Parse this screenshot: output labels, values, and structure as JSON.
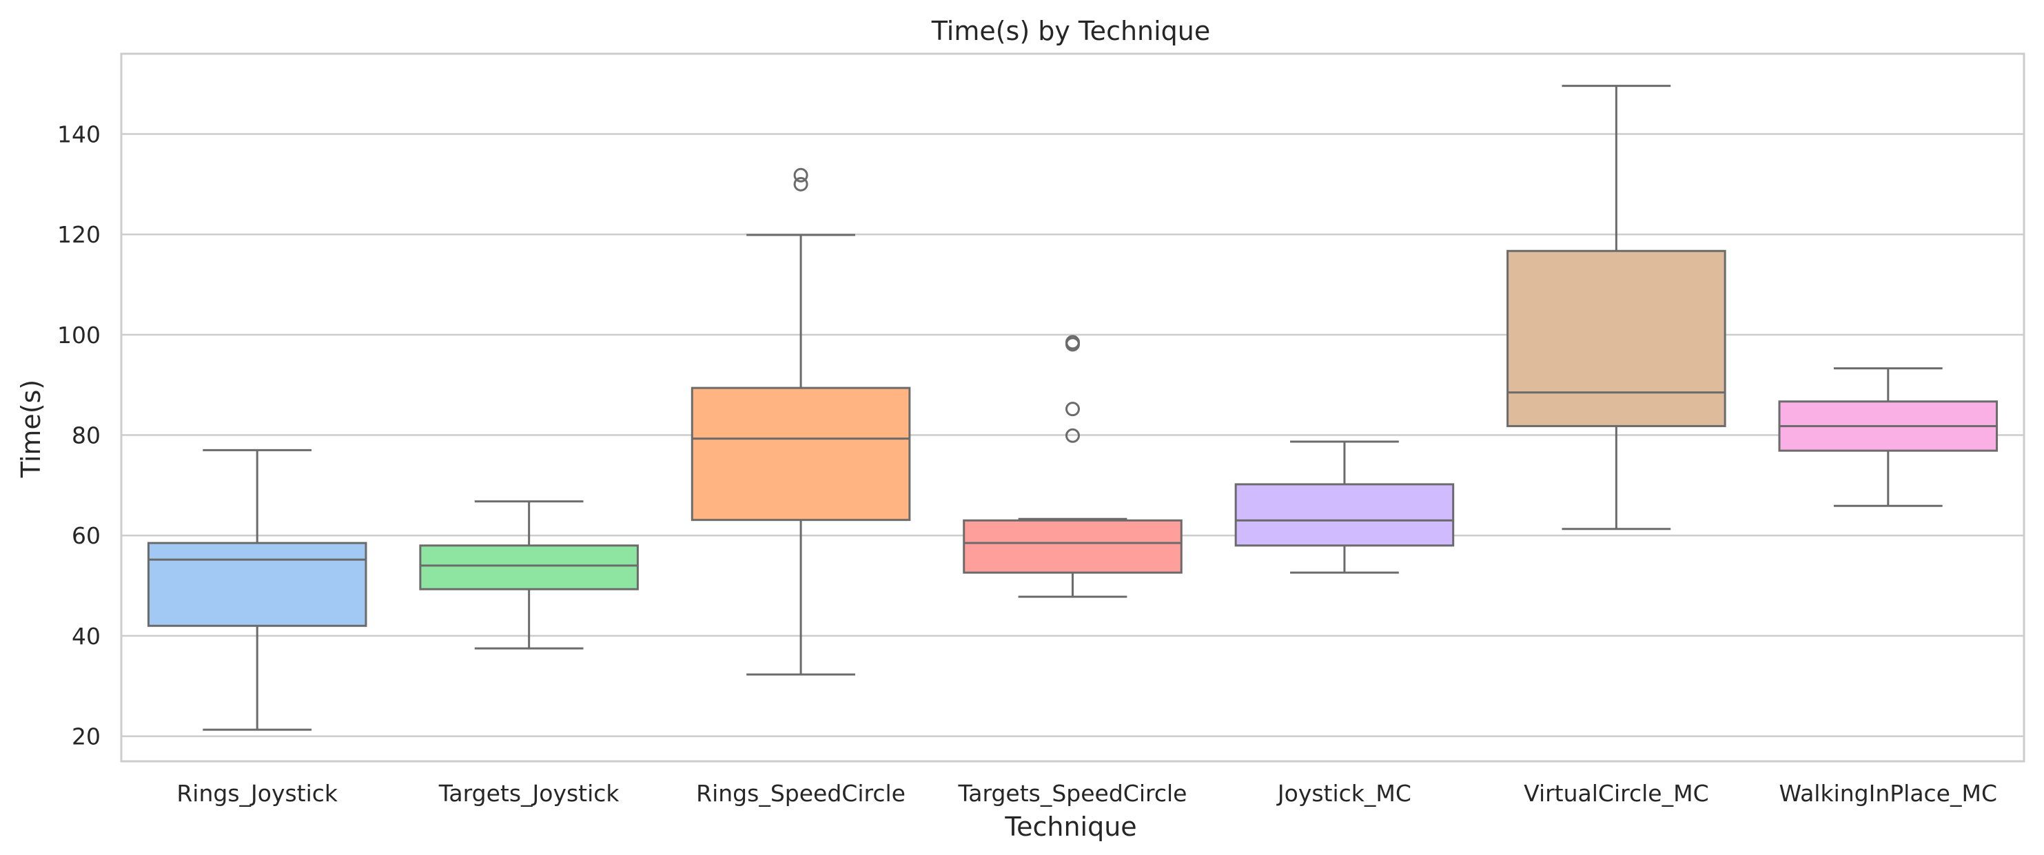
{
  "chart_data": {
    "type": "box",
    "title": "Time(s) by Technique",
    "xlabel": "Technique",
    "ylabel": "Time(s)",
    "ylim": [
      15,
      156
    ],
    "yticks": [
      20,
      40,
      60,
      80,
      100,
      120,
      140
    ],
    "grid": true,
    "categories": [
      "Rings_Joystick",
      "Targets_Joystick",
      "Rings_SpeedCircle",
      "Targets_SpeedCircle",
      "Joystick_MC",
      "VirtualCircle_MC",
      "WalkingInPlace_MC"
    ],
    "colors": [
      "#a1c9f4",
      "#8de5a1",
      "#ffb482",
      "#ff9f9b",
      "#d0bbff",
      "#debb9b",
      "#fab0e4"
    ],
    "boxes": [
      {
        "whislo": 21.3,
        "q1": 42.0,
        "med": 55.2,
        "q3": 58.5,
        "whishi": 77.0,
        "fliers": []
      },
      {
        "whislo": 37.5,
        "q1": 49.3,
        "med": 54.0,
        "q3": 58.0,
        "whishi": 66.8,
        "fliers": []
      },
      {
        "whislo": 32.3,
        "q1": 63.1,
        "med": 79.3,
        "q3": 89.4,
        "whishi": 119.9,
        "fliers": [
          130.0,
          131.8
        ]
      },
      {
        "whislo": 47.8,
        "q1": 52.6,
        "med": 58.5,
        "q3": 63.0,
        "whishi": 63.3,
        "fliers": [
          79.9,
          85.2,
          98.1,
          98.5
        ]
      },
      {
        "whislo": 52.6,
        "q1": 58.0,
        "med": 63.0,
        "q3": 70.2,
        "whishi": 78.7,
        "fliers": []
      },
      {
        "whislo": 61.3,
        "q1": 81.8,
        "med": 88.5,
        "q3": 116.7,
        "whishi": 149.6,
        "fliers": []
      },
      {
        "whislo": 65.9,
        "q1": 76.9,
        "med": 81.8,
        "q3": 86.7,
        "whishi": 93.3,
        "fliers": []
      }
    ]
  }
}
